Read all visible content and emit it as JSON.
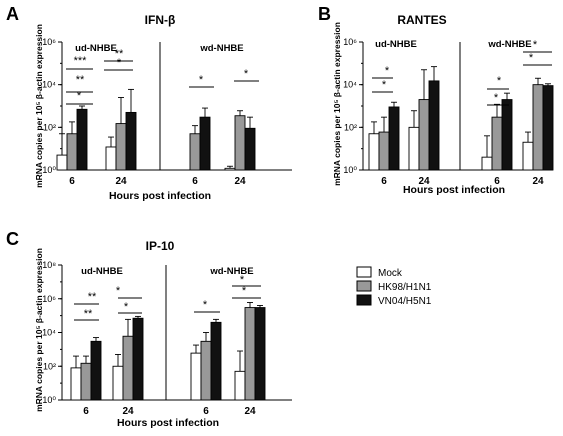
{
  "legend": [
    {
      "name": "Mock",
      "color": "#ffffff"
    },
    {
      "name": "HK98/H1N1",
      "color": "#999999"
    },
    {
      "name": "VN04/H5N1",
      "color": "#111111"
    }
  ],
  "chart_data": [
    {
      "panel": "A",
      "type": "bar",
      "title": "IFN-β",
      "ylabel": "mRNA copies per 10⁵ β-actin expression",
      "xlabel": "Hours post infection",
      "yscale": "log",
      "ylim": [
        1,
        1000000
      ],
      "yticks": [
        "10⁰",
        "10²",
        "10⁴",
        "10⁶"
      ],
      "groups": [
        {
          "label": "ud-NHBE",
          "categories": [
            "6",
            "24"
          ],
          "series": [
            {
              "name": "Mock",
              "values": [
                5,
                12
              ],
              "errors": [
                50,
                35
              ]
            },
            {
              "name": "HK98/H1N1",
              "values": [
                50,
                150
              ],
              "errors": [
                180,
                2500
              ]
            },
            {
              "name": "VN04/H5N1",
              "values": [
                700,
                500
              ],
              "errors": [
                1000,
                6000
              ]
            }
          ],
          "significance": [
            "*",
            "**",
            "***",
            "*",
            "**"
          ]
        },
        {
          "label": "wd-NHBE",
          "categories": [
            "6",
            "24"
          ],
          "series": [
            {
              "name": "Mock",
              "values": [
                null,
                1.2
              ],
              "errors": [
                null,
                1.5
              ]
            },
            {
              "name": "HK98/H1N1",
              "values": [
                50,
                350
              ],
              "errors": [
                120,
                600
              ]
            },
            {
              "name": "VN04/H5N1",
              "values": [
                300,
                90
              ],
              "errors": [
                800,
                300
              ]
            }
          ],
          "significance": [
            "*",
            "*"
          ]
        }
      ]
    },
    {
      "panel": "B",
      "type": "bar",
      "title": "RANTES",
      "ylabel": "mRNA copies per 10⁵ β-actin expression",
      "xlabel": "Hours post infection",
      "yscale": "log",
      "ylim": [
        1,
        1000000
      ],
      "yticks": [
        "10⁰",
        "10²",
        "10⁴",
        "10⁶"
      ],
      "groups": [
        {
          "label": "ud-NHBE",
          "categories": [
            "6",
            "24"
          ],
          "series": [
            {
              "name": "Mock",
              "values": [
                50,
                100
              ],
              "errors": [
                180,
                600
              ]
            },
            {
              "name": "HK98/H1N1",
              "values": [
                60,
                2000
              ],
              "errors": [
                300,
                50000
              ]
            },
            {
              "name": "VN04/H5N1",
              "values": [
                900,
                15000
              ],
              "errors": [
                1500,
                70000
              ]
            }
          ],
          "significance": [
            "*",
            "*"
          ]
        },
        {
          "label": "wd-NHBE",
          "categories": [
            "6",
            "24"
          ],
          "series": [
            {
              "name": "Mock",
              "values": [
                4,
                20
              ],
              "errors": [
                40,
                60
              ]
            },
            {
              "name": "HK98/H1N1",
              "values": [
                300,
                10000
              ],
              "errors": [
                1200,
                20000
              ]
            },
            {
              "name": "VN04/H5N1",
              "values": [
                2000,
                9000
              ],
              "errors": [
                4000,
                11000
              ]
            }
          ],
          "significance": [
            "*",
            "*",
            "*",
            "*"
          ]
        }
      ]
    },
    {
      "panel": "C",
      "type": "bar",
      "title": "IP-10",
      "ylabel": "mRNA copies per 10⁵ β-actin expression",
      "xlabel": "Hours post infection",
      "yscale": "log",
      "ylim": [
        1,
        100000000
      ],
      "yticks": [
        "10⁰",
        "10²",
        "10⁴",
        "10⁶",
        "10⁸"
      ],
      "groups": [
        {
          "label": "ud-NHBE",
          "categories": [
            "6",
            "24"
          ],
          "series": [
            {
              "name": "Mock",
              "values": [
                80,
                100
              ],
              "errors": [
                400,
                500
              ]
            },
            {
              "name": "HK98/H1N1",
              "values": [
                150,
                6000
              ],
              "errors": [
                400,
                60000
              ]
            },
            {
              "name": "VN04/H5N1",
              "values": [
                3000,
                70000
              ],
              "errors": [
                5000,
                90000
              ]
            }
          ],
          "significance": [
            "**",
            "**",
            "*",
            "*"
          ]
        },
        {
          "label": "wd-NHBE",
          "categories": [
            "6",
            "24"
          ],
          "series": [
            {
              "name": "Mock",
              "values": [
                600,
                50
              ],
              "errors": [
                1800,
                800
              ]
            },
            {
              "name": "HK98/H1N1",
              "values": [
                3000,
                300000
              ],
              "errors": [
                10000,
                600000
              ]
            },
            {
              "name": "VN04/H5N1",
              "values": [
                40000,
                300000
              ],
              "errors": [
                60000,
                400000
              ]
            }
          ],
          "significance": [
            "*",
            "*",
            "*"
          ]
        }
      ]
    }
  ]
}
